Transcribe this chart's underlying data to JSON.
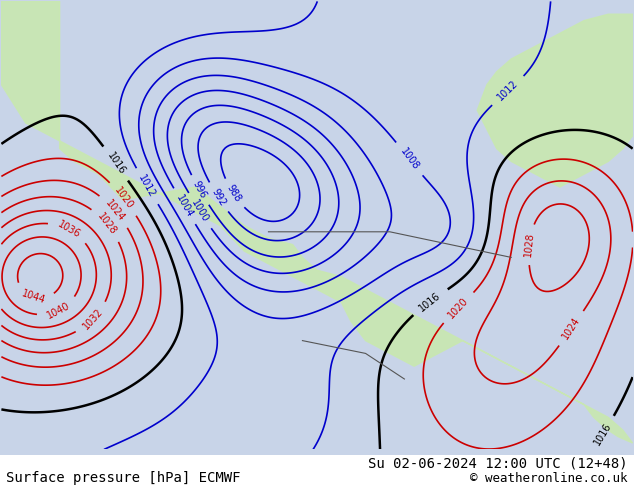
{
  "title_left": "Surface pressure [hPa] ECMWF",
  "title_right": "Su 02-06-2024 12:00 UTC (12+48)",
  "copyright": "© weatheronline.co.uk",
  "bg_color": "#d0d8e8",
  "land_color": "#c8e8b0",
  "border_color": "#888888",
  "blue_isobar_color": "#0000cc",
  "red_isobar_color": "#cc0000",
  "black_isobar_color": "#000000",
  "label_fontsize": 9,
  "footer_fontsize": 10
}
